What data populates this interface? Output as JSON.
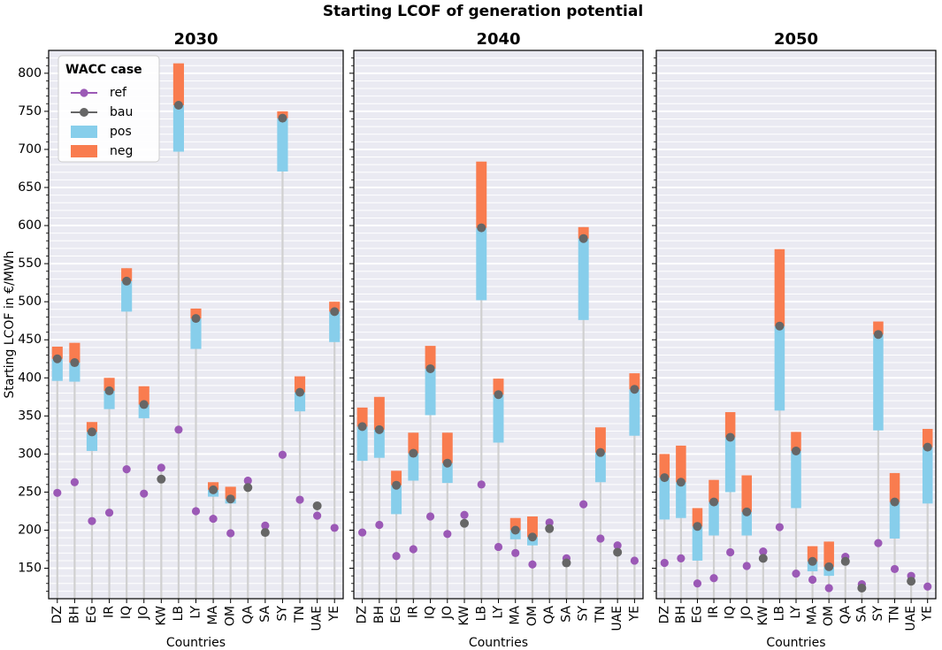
{
  "chart_data": {
    "type": "bar",
    "title": "Starting LCOF of generation potential",
    "ylabel": "Starting LCOF in €/MWh",
    "xlabel": "Countries",
    "ylim": [
      110,
      830
    ],
    "yticks": [
      150,
      200,
      250,
      300,
      350,
      400,
      450,
      500,
      550,
      600,
      650,
      700,
      750,
      800
    ],
    "categories": [
      "DZ",
      "BH",
      "EG",
      "IR",
      "IQ",
      "JO",
      "KW",
      "LB",
      "LY",
      "MA",
      "OM",
      "QA",
      "SA",
      "SY",
      "TN",
      "UAE",
      "YE"
    ],
    "legend": {
      "title": "WACC case",
      "entries": [
        "ref",
        "bau",
        "pos",
        "neg"
      ],
      "position": "upper-left"
    },
    "colors": {
      "ref": "#9b59b6",
      "bau": "#666666",
      "pos": "#87ceeb",
      "neg": "#f97c4f",
      "stem": "#d0d0d0",
      "background": "#eaeaf2"
    },
    "panels": [
      {
        "title": "2030",
        "ref": [
          249,
          263,
          212,
          223,
          280,
          248,
          282,
          332,
          225,
          215,
          196,
          265,
          206,
          299,
          240,
          219,
          203
        ],
        "bau": [
          425,
          420,
          329,
          383,
          527,
          365,
          267,
          758,
          478,
          253,
          241,
          256,
          197,
          741,
          381,
          232,
          487
        ],
        "pos": [
          396,
          395,
          304,
          359,
          487,
          347,
          267,
          697,
          438,
          244,
          235,
          256,
          197,
          671,
          356,
          232,
          447
        ],
        "neg": [
          441,
          446,
          342,
          400,
          544,
          389,
          267,
          813,
          491,
          263,
          257,
          256,
          197,
          750,
          402,
          232,
          500
        ]
      },
      {
        "title": "2040",
        "ref": [
          197,
          207,
          166,
          175,
          218,
          195,
          220,
          260,
          178,
          170,
          155,
          210,
          163,
          234,
          189,
          180,
          160
        ],
        "bau": [
          336,
          332,
          259,
          301,
          412,
          288,
          209,
          597,
          378,
          200,
          191,
          202,
          157,
          583,
          302,
          171,
          385
        ],
        "pos": [
          291,
          295,
          221,
          265,
          351,
          262,
          209,
          502,
          315,
          188,
          180,
          202,
          157,
          476,
          263,
          171,
          324
        ],
        "neg": [
          361,
          375,
          278,
          328,
          442,
          328,
          209,
          684,
          399,
          216,
          218,
          202,
          157,
          598,
          335,
          171,
          406
        ]
      },
      {
        "title": "2050",
        "ref": [
          157,
          163,
          130,
          137,
          171,
          153,
          172,
          204,
          143,
          135,
          124,
          165,
          129,
          183,
          149,
          140,
          126
        ],
        "bau": [
          269,
          263,
          205,
          237,
          322,
          224,
          163,
          468,
          304,
          159,
          152,
          159,
          124,
          457,
          237,
          133,
          309
        ],
        "pos": [
          214,
          216,
          160,
          193,
          250,
          193,
          163,
          357,
          229,
          146,
          140,
          159,
          124,
          331,
          189,
          133,
          235
        ],
        "neg": [
          300,
          311,
          229,
          266,
          355,
          272,
          163,
          569,
          329,
          179,
          185,
          159,
          124,
          474,
          275,
          133,
          333
        ]
      }
    ]
  }
}
